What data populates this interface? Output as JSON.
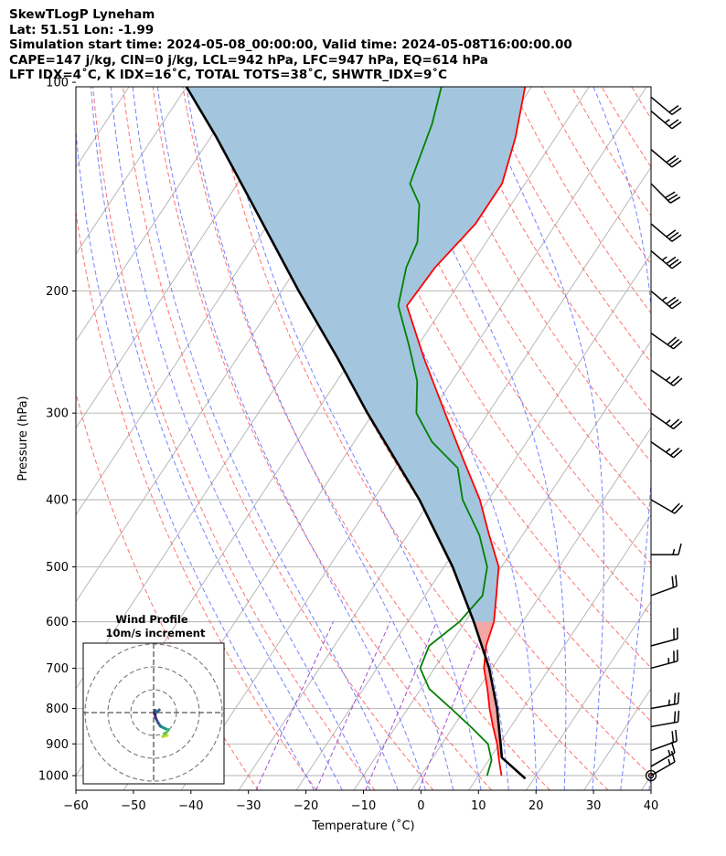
{
  "header": {
    "line1": "SkewTLogP Lyneham",
    "line2": "Lat: 51.51   Lon: -1.99",
    "line3": "Simulation start time: 2024-05-08_00:00:00, Valid time: 2024-05-08T16:00:00.00",
    "line4": "CAPE=147 j/kg, CIN=0 j/kg, LCL=942 hPa, LFC=947 hPa, EQ=614 hPa",
    "line5": "LFT IDX=4˚C, K IDX=16˚C, TOTAL TOTS=38˚C, SHWTR_IDX=9˚C"
  },
  "colors": {
    "temperature": "#ff0000",
    "dewpoint": "#008000",
    "parcel": "#000000",
    "cape_fill": "#a3c6de",
    "cin_fill": "#f2a6a6",
    "dry_adiabat": "#ff6060",
    "moist_adiabat": "#5a6cff",
    "mixing_ratio": "#a050d0"
  },
  "chart_data": [
    {
      "type": "line",
      "subtype": "skew-t log-p",
      "xlabel": "Temperature (˚C)",
      "ylabel": "Pressure (hPa)",
      "xlim": [
        -60,
        40
      ],
      "ylim_hpa": [
        1050,
        100
      ],
      "x_scale": "linear, skewed isotherms",
      "y_scale": "log",
      "x_ticks": [
        "−60",
        "−50",
        "−40",
        "−30",
        "−20",
        "−10",
        "0",
        "10",
        "20",
        "30",
        "40"
      ],
      "y_ticks": [
        "1000",
        "900",
        "800",
        "700",
        "600",
        "500",
        "400",
        "300",
        "200",
        "100"
      ],
      "grid": true,
      "series": [
        {
          "name": "temperature",
          "points": [
            {
              "p": 1000,
              "t": 14.0
            },
            {
              "p": 950,
              "t": 11.8
            },
            {
              "p": 900,
              "t": 9.6
            },
            {
              "p": 850,
              "t": 6.9
            },
            {
              "p": 800,
              "t": 4.2
            },
            {
              "p": 750,
              "t": 1.6
            },
            {
              "p": 700,
              "t": -1.4
            },
            {
              "p": 650,
              "t": -3.6
            },
            {
              "p": 600,
              "t": -5.0
            },
            {
              "p": 550,
              "t": -7.6
            },
            {
              "p": 500,
              "t": -10.5
            },
            {
              "p": 450,
              "t": -15.8
            },
            {
              "p": 400,
              "t": -21.5
            },
            {
              "p": 350,
              "t": -29.0
            },
            {
              "p": 300,
              "t": -37.5
            },
            {
              "p": 250,
              "t": -47.5
            },
            {
              "p": 210,
              "t": -56.5
            },
            {
              "p": 185,
              "t": -56.0
            },
            {
              "p": 160,
              "t": -54.0
            },
            {
              "p": 140,
              "t": -54.0
            },
            {
              "p": 120,
              "t": -57.0
            },
            {
              "p": 100,
              "t": -61.5
            }
          ]
        },
        {
          "name": "dewpoint",
          "points": [
            {
              "p": 1000,
              "t": 11.5
            },
            {
              "p": 950,
              "t": 10.5
            },
            {
              "p": 900,
              "t": 8.0
            },
            {
              "p": 850,
              "t": 3.0
            },
            {
              "p": 800,
              "t": -2.5
            },
            {
              "p": 750,
              "t": -8.5
            },
            {
              "p": 700,
              "t": -12.5
            },
            {
              "p": 650,
              "t": -13.5
            },
            {
              "p": 600,
              "t": -11.0
            },
            {
              "p": 550,
              "t": -10.0
            },
            {
              "p": 500,
              "t": -12.5
            },
            {
              "p": 450,
              "t": -17.5
            },
            {
              "p": 400,
              "t": -24.5
            },
            {
              "p": 360,
              "t": -29.0
            },
            {
              "p": 330,
              "t": -36.5
            },
            {
              "p": 300,
              "t": -42.5
            },
            {
              "p": 270,
              "t": -46.0
            },
            {
              "p": 240,
              "t": -51.5
            },
            {
              "p": 210,
              "t": -58.0
            },
            {
              "p": 185,
              "t": -61.0
            },
            {
              "p": 170,
              "t": -62.0
            },
            {
              "p": 150,
              "t": -66.0
            },
            {
              "p": 140,
              "t": -70.0
            },
            {
              "p": 115,
              "t": -73.0
            },
            {
              "p": 100,
              "t": -76.0
            }
          ]
        },
        {
          "name": "parcel",
          "points": [
            {
              "p": 1010,
              "t": 18.5
            },
            {
              "p": 942,
              "t": 12.0
            },
            {
              "p": 900,
              "t": 10.2
            },
            {
              "p": 800,
              "t": 5.5
            },
            {
              "p": 700,
              "t": -0.5
            },
            {
              "p": 600,
              "t": -8.5
            },
            {
              "p": 500,
              "t": -18.5
            },
            {
              "p": 400,
              "t": -32.0
            },
            {
              "p": 300,
              "t": -51.0
            },
            {
              "p": 250,
              "t": -62.5
            },
            {
              "p": 200,
              "t": -77.0
            },
            {
              "p": 150,
              "t": -95.0
            },
            {
              "p": 120,
              "t": -109.0
            },
            {
              "p": 100,
              "t": -121.0
            }
          ]
        }
      ],
      "wind_barbs": [
        {
          "p": 1000,
          "speed_kt": 15,
          "dir_deg": 240
        },
        {
          "p": 970,
          "speed_kt": 15,
          "dir_deg": 240
        },
        {
          "p": 920,
          "speed_kt": 20,
          "dir_deg": 250
        },
        {
          "p": 850,
          "speed_kt": 20,
          "dir_deg": 260
        },
        {
          "p": 800,
          "speed_kt": 25,
          "dir_deg": 260
        },
        {
          "p": 700,
          "speed_kt": 25,
          "dir_deg": 255
        },
        {
          "p": 650,
          "speed_kt": 20,
          "dir_deg": 255
        },
        {
          "p": 550,
          "speed_kt": 20,
          "dir_deg": 250
        },
        {
          "p": 480,
          "speed_kt": 15,
          "dir_deg": 270
        },
        {
          "p": 400,
          "speed_kt": 20,
          "dir_deg": 300
        },
        {
          "p": 330,
          "speed_kt": 25,
          "dir_deg": 305
        },
        {
          "p": 300,
          "speed_kt": 25,
          "dir_deg": 305
        },
        {
          "p": 260,
          "speed_kt": 25,
          "dir_deg": 305
        },
        {
          "p": 230,
          "speed_kt": 30,
          "dir_deg": 305
        },
        {
          "p": 200,
          "speed_kt": 35,
          "dir_deg": 310
        },
        {
          "p": 175,
          "speed_kt": 35,
          "dir_deg": 310
        },
        {
          "p": 160,
          "speed_kt": 30,
          "dir_deg": 310
        },
        {
          "p": 140,
          "speed_kt": 30,
          "dir_deg": 315
        },
        {
          "p": 125,
          "speed_kt": 30,
          "dir_deg": 310
        },
        {
          "p": 110,
          "speed_kt": 25,
          "dir_deg": 310
        },
        {
          "p": 105,
          "speed_kt": 20,
          "dir_deg": 310
        }
      ]
    },
    {
      "type": "scatter",
      "subtype": "hodograph",
      "title": "Wind Profile",
      "subtitle": "10m/s increment",
      "rings_ms": [
        10,
        20,
        30
      ],
      "colormap": "viridis (low level yellow to upper level purple)",
      "u_ms": [
        6.0,
        4.0,
        5.0,
        6.5,
        5.0,
        3.0,
        2.0,
        1.0,
        0.5,
        0.6,
        1.2,
        2.5
      ],
      "v_ms": [
        -10.0,
        -10.5,
        -9.5,
        -7.5,
        -7.0,
        -6.0,
        -4.5,
        -2.5,
        -0.5,
        1.0,
        0.0,
        1.2
      ]
    }
  ]
}
